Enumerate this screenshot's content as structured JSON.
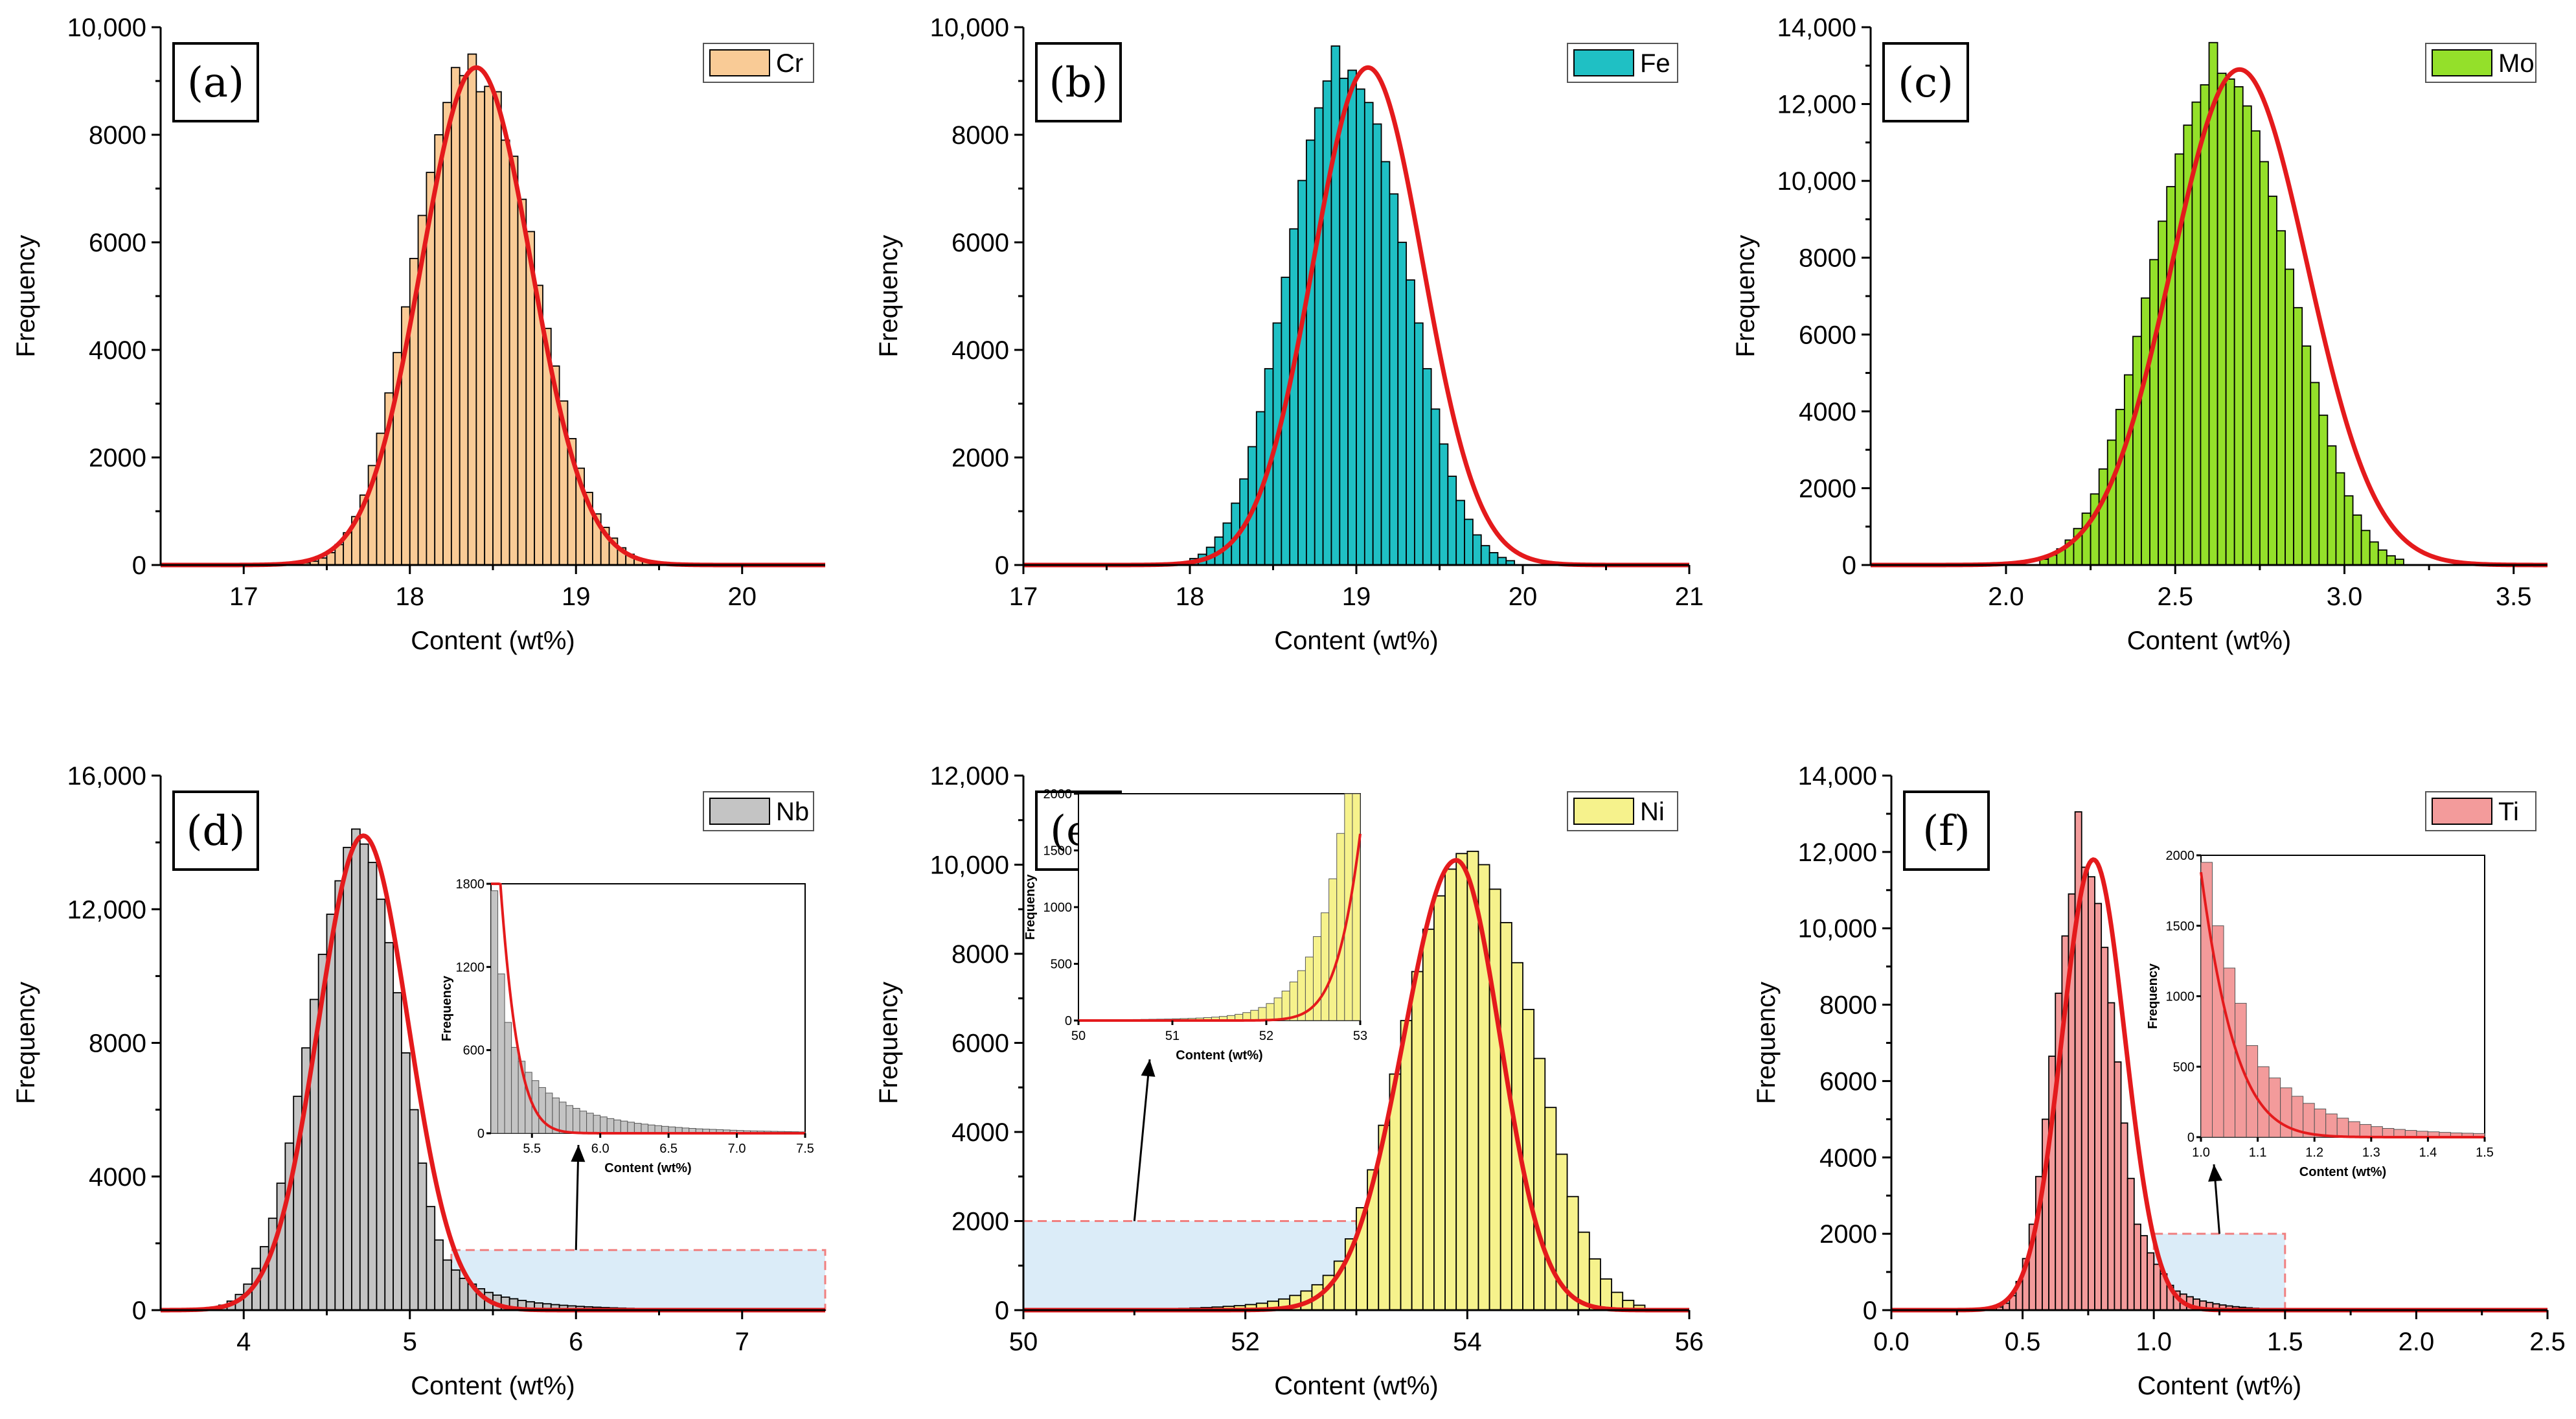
{
  "chart_data": [
    {
      "id": "a",
      "type": "bar",
      "panel_label": "(a)",
      "legend": "Cr",
      "color": "#f9cb96",
      "xlabel": "Content (wt%)",
      "ylabel": "Frequency",
      "xlim": [
        16.5,
        20.5
      ],
      "ylim": [
        0,
        10000
      ],
      "xticks": [
        17,
        18,
        19,
        20
      ],
      "xticklabels": [
        "17",
        "18",
        "19",
        "20"
      ],
      "yticks": [
        0,
        2000,
        4000,
        6000,
        8000,
        10000
      ],
      "yticklabels": [
        "0",
        "2000",
        "4000",
        "6000",
        "8000",
        "10,000"
      ],
      "fit": {
        "mean": 18.4,
        "sd": 0.33,
        "peak": 9250
      },
      "bins": {
        "start": 17.35,
        "width": 0.05,
        "values": [
          40,
          70,
          130,
          230,
          380,
          600,
          900,
          1300,
          1850,
          2450,
          3200,
          3950,
          4800,
          5700,
          6500,
          7300,
          8000,
          8600,
          9250,
          9100,
          9500,
          8800,
          8900,
          8800,
          7900,
          7600,
          6800,
          6200,
          5200,
          4400,
          3700,
          3050,
          2350,
          1800,
          1350,
          950,
          700,
          500,
          320,
          200,
          120,
          70,
          40
        ]
      }
    },
    {
      "id": "b",
      "type": "bar",
      "panel_label": "(b)",
      "legend": "Fe",
      "color": "#1fc0c4",
      "xlabel": "Content (wt%)",
      "ylabel": "Frequency",
      "xlim": [
        17,
        21
      ],
      "ylim": [
        0,
        10000
      ],
      "xticks": [
        17,
        18,
        19,
        20,
        21
      ],
      "xticklabels": [
        "17",
        "18",
        "19",
        "20",
        "21"
      ],
      "yticks": [
        0,
        2000,
        4000,
        6000,
        8000,
        10000
      ],
      "yticklabels": [
        "0",
        "2000",
        "4000",
        "6000",
        "8000",
        "10,000"
      ],
      "fit": {
        "mean": 19.07,
        "sd": 0.33,
        "peak": 9250
      },
      "bins": {
        "start": 18.0,
        "width": 0.05,
        "values": [
          120,
          200,
          330,
          520,
          780,
          1150,
          1600,
          2200,
          2850,
          3650,
          4500,
          5350,
          6250,
          7150,
          7900,
          8500,
          9000,
          9650,
          9050,
          9200,
          8850,
          8600,
          8200,
          7500,
          6900,
          6000,
          5300,
          4500,
          3650,
          2900,
          2250,
          1650,
          1200,
          850,
          560,
          360,
          230,
          140,
          80
        ]
      }
    },
    {
      "id": "c",
      "type": "bar",
      "panel_label": "(c)",
      "legend": "Mo",
      "color": "#94e02a",
      "xlabel": "Content (wt%)",
      "ylabel": "Frequency",
      "xlim": [
        1.6,
        3.6
      ],
      "ylim": [
        0,
        14000
      ],
      "xticks": [
        2.0,
        2.5,
        3.0,
        3.5
      ],
      "xticklabels": [
        "2.0",
        "2.5",
        "3.0",
        "3.5"
      ],
      "yticks": [
        0,
        2000,
        4000,
        6000,
        8000,
        10000,
        12000,
        14000
      ],
      "yticklabels": [
        "0",
        "2000",
        "4000",
        "6000",
        "8000",
        "10,000",
        "12,000",
        "14,000"
      ],
      "fit": {
        "mean": 2.69,
        "sd": 0.2,
        "peak": 12900
      },
      "bins": {
        "start": 2.1,
        "width": 0.025,
        "values": [
          150,
          260,
          420,
          650,
          950,
          1350,
          1850,
          2500,
          3250,
          4050,
          4950,
          5950,
          6950,
          7950,
          8950,
          9850,
          10700,
          11450,
          12050,
          12500,
          13600,
          12800,
          12650,
          12450,
          11950,
          11300,
          10500,
          9600,
          8700,
          7700,
          6700,
          5700,
          4750,
          3900,
          3100,
          2400,
          1800,
          1300,
          900,
          600,
          390,
          240,
          150
        ]
      }
    },
    {
      "id": "d",
      "type": "bar",
      "panel_label": "(d)",
      "legend": "Nb",
      "color": "#c4c4c4",
      "xlabel": "Content (wt%)",
      "ylabel": "Frequency",
      "xlim": [
        3.5,
        7.5
      ],
      "ylim": [
        0,
        16000
      ],
      "xticks": [
        4,
        5,
        6,
        7
      ],
      "xticklabels": [
        "4",
        "5",
        "6",
        "7"
      ],
      "yticks": [
        0,
        4000,
        8000,
        12000,
        16000
      ],
      "yticklabels": [
        "0",
        "4000",
        "8000",
        "12,000",
        "16,000"
      ],
      "fit": {
        "mean": 4.72,
        "sd": 0.27,
        "peak": 14200
      },
      "bins": {
        "start": 3.8,
        "width": 0.05,
        "values": [
          80,
          150,
          270,
          470,
          780,
          1250,
          1900,
          2750,
          3800,
          5000,
          6400,
          7850,
          9300,
          10650,
          11850,
          12850,
          13850,
          14400,
          13950,
          13400,
          12300,
          11000,
          9500,
          7700,
          6000,
          4400,
          3100,
          2100,
          1500,
          1200,
          950,
          780,
          640,
          530,
          450,
          390,
          340,
          290,
          250,
          215,
          190,
          165,
          145,
          128,
          112,
          100,
          88,
          78,
          70,
          62,
          55,
          50,
          45,
          40,
          36,
          32,
          29,
          26,
          23,
          21,
          19,
          17,
          15,
          14,
          12,
          11,
          10,
          9,
          8,
          7,
          6,
          5,
          4,
          3,
          3
        ]
      },
      "highlight": {
        "x0": 5.25,
        "x1": 7.5,
        "y0": 0,
        "y1": 1800
      },
      "inset": {
        "xlabel": "Content (wt%)",
        "ylabel": "Frequency",
        "xlim": [
          5.2,
          7.5
        ],
        "ylim": [
          0,
          1800
        ],
        "xticks": [
          5.5,
          6.0,
          6.5,
          7.0,
          7.5
        ],
        "xticklabels": [
          "5.5",
          "6.0",
          "6.5",
          "7.0",
          "7.5"
        ],
        "yticks": [
          0,
          600,
          1200,
          1800
        ],
        "yticklabels": [
          "0",
          "600",
          "1200",
          "1800"
        ]
      }
    },
    {
      "id": "e",
      "type": "bar",
      "panel_label": "(e)",
      "legend": "Ni",
      "color": "#f6f28c",
      "xlabel": "Content (wt%)",
      "ylabel": "Frequency",
      "xlim": [
        50,
        56
      ],
      "ylim": [
        0,
        12000
      ],
      "xticks": [
        50,
        52,
        54,
        56
      ],
      "xticklabels": [
        "50",
        "52",
        "54",
        "56"
      ],
      "yticks": [
        0,
        2000,
        4000,
        6000,
        8000,
        10000,
        12000
      ],
      "yticklabels": [
        "0",
        "2000",
        "4000",
        "6000",
        "8000",
        "10,000",
        "12,000"
      ],
      "fit": {
        "mean": 53.9,
        "sd": 0.45,
        "peak": 10100,
        "skew": true
      },
      "bins": {
        "start": 51.0,
        "width": 0.1,
        "values": [
          20,
          25,
          30,
          35,
          40,
          48,
          58,
          70,
          85,
          100,
          125,
          155,
          200,
          250,
          330,
          430,
          570,
          780,
          1100,
          1600,
          2300,
          3150,
          4150,
          5300,
          6500,
          7600,
          8550,
          9300,
          9900,
          10250,
          10300,
          10000,
          9450,
          8700,
          7800,
          6750,
          5650,
          4550,
          3500,
          2550,
          1750,
          1150,
          700,
          400,
          220,
          110
        ]
      },
      "highlight": {
        "x0": 50,
        "x1": 53,
        "y0": 0,
        "y1": 2000
      },
      "inset": {
        "xlabel": "Content (wt%)",
        "ylabel": "Frequency",
        "xlim": [
          50,
          53
        ],
        "ylim": [
          0,
          2000
        ],
        "xticks": [
          50,
          51,
          52,
          53
        ],
        "xticklabels": [
          "50",
          "51",
          "52",
          "53"
        ],
        "yticks": [
          0,
          500,
          1000,
          1500,
          2000
        ],
        "yticklabels": [
          "0",
          "500",
          "1000",
          "1500",
          "2000"
        ]
      }
    },
    {
      "id": "f",
      "type": "bar",
      "panel_label": "(f)",
      "legend": "Ti",
      "color": "#f39b9b",
      "xlabel": "Content (wt%)",
      "ylabel": "Frequency",
      "xlim": [
        0.0,
        2.5
      ],
      "ylim": [
        0,
        14000
      ],
      "xticks": [
        0.0,
        0.5,
        1.0,
        1.5,
        2.0,
        2.5
      ],
      "xticklabels": [
        "0.0",
        "0.5",
        "1.0",
        "1.5",
        "2.0",
        "2.5"
      ],
      "yticks": [
        0,
        2000,
        4000,
        6000,
        8000,
        10000,
        12000,
        14000
      ],
      "yticklabels": [
        "0",
        "2000",
        "4000",
        "6000",
        "8000",
        "10,000",
        "12,000",
        "14,000"
      ],
      "fit": {
        "mean": 0.77,
        "sd": 0.12,
        "peak": 11800
      },
      "bins": {
        "start": 0.4,
        "width": 0.025,
        "values": [
          80,
          180,
          380,
          750,
          1350,
          2250,
          3500,
          5000,
          6650,
          8300,
          9800,
          10900,
          13050,
          11600,
          11350,
          10650,
          9500,
          8050,
          6500,
          4900,
          3450,
          2250,
          1950,
          1500,
          1200,
          950,
          650,
          500,
          420,
          350,
          290,
          240,
          200,
          165,
          135,
          110,
          90,
          75,
          62,
          50,
          42,
          35,
          30,
          25,
          20,
          17,
          14,
          12,
          10,
          8
        ]
      },
      "highlight": {
        "x0": 1.0,
        "x1": 1.5,
        "y0": 0,
        "y1": 2000
      },
      "inset": {
        "xlabel": "Content (wt%)",
        "ylabel": "Frequency",
        "xlim": [
          1.0,
          1.5
        ],
        "ylim": [
          0,
          2000
        ],
        "xticks": [
          1.0,
          1.1,
          1.2,
          1.3,
          1.4,
          1.5
        ],
        "xticklabels": [
          "1.0",
          "1.1",
          "1.2",
          "1.3",
          "1.4",
          "1.5"
        ],
        "yticks": [
          0,
          500,
          1000,
          1500,
          2000
        ],
        "yticklabels": [
          "0",
          "500",
          "1000",
          "1500",
          "2000"
        ]
      }
    }
  ]
}
